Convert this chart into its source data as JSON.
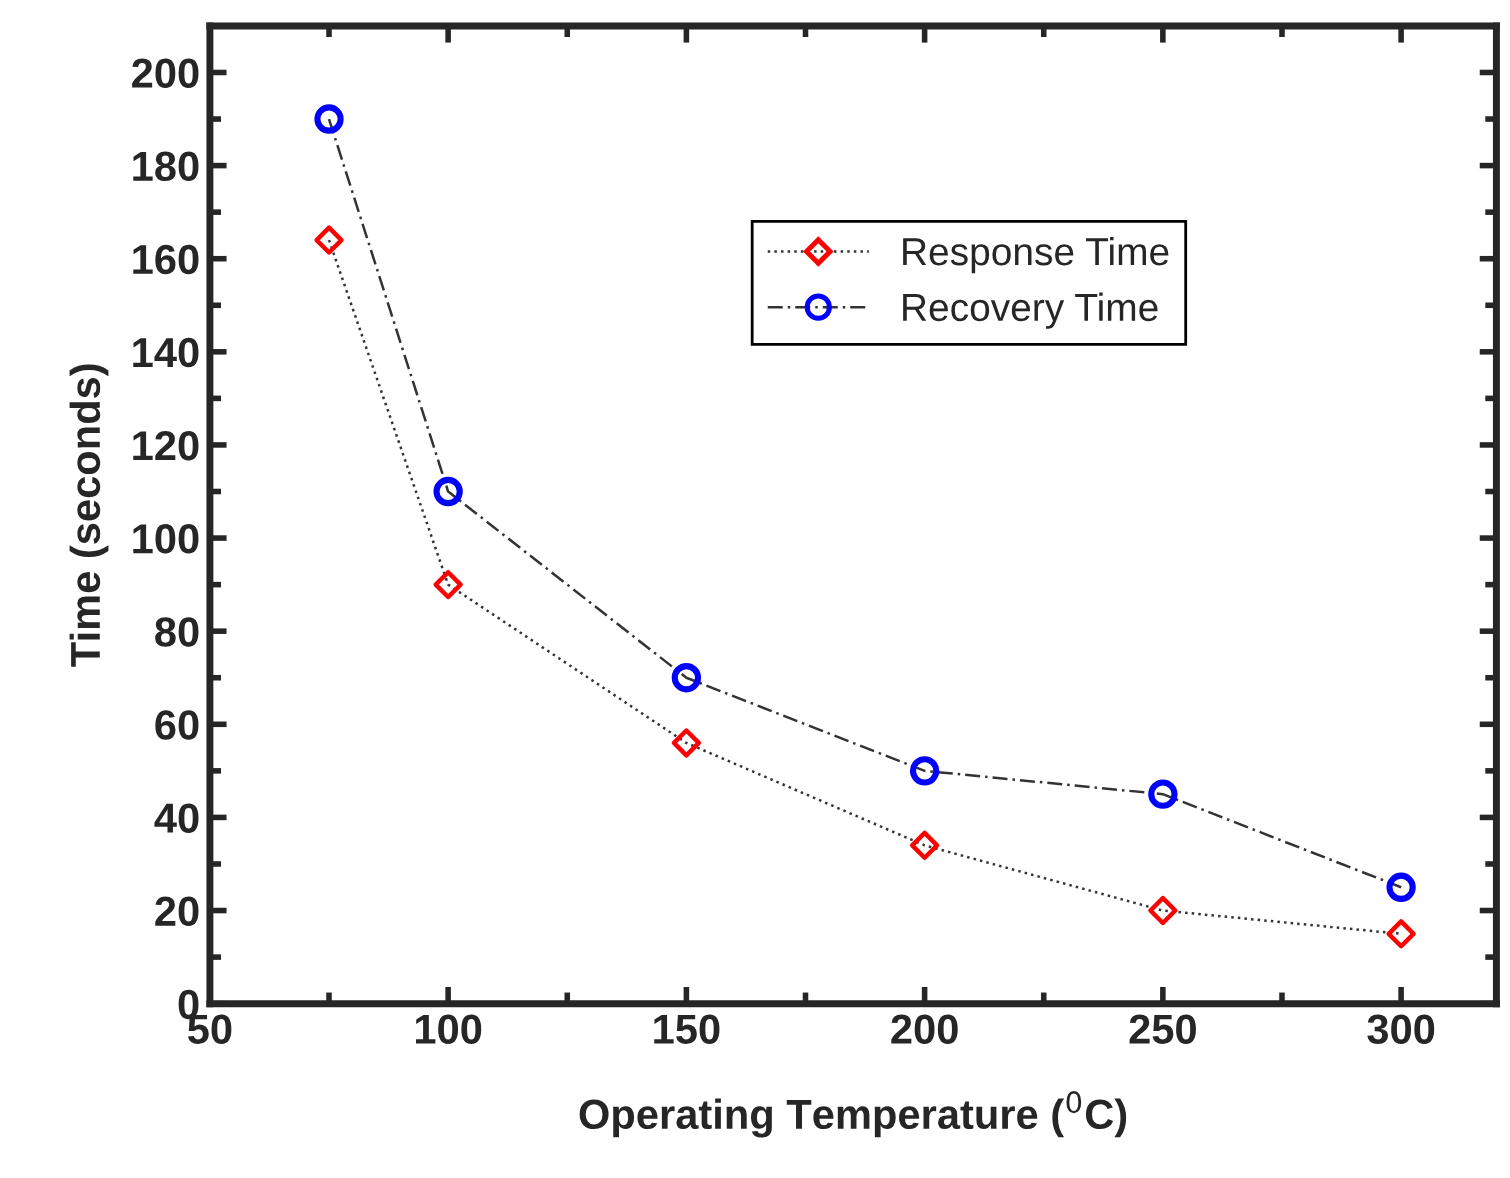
{
  "chart_data": {
    "type": "line",
    "xlabel": "Operating Temperature ($^{0}$C)",
    "ylabel": "Time (seconds)",
    "x": [
      75,
      100,
      150,
      200,
      250,
      300
    ],
    "series": [
      {
        "name": "Response Time",
        "color": "#ff0000",
        "marker": "diamond",
        "line_style": "dotted",
        "values": [
          164,
          90,
          56,
          34,
          20,
          15
        ]
      },
      {
        "name": "Recovery Time",
        "color": "#0000ff",
        "marker": "circle",
        "line_style": "dashed",
        "values": [
          190,
          110,
          70,
          50,
          45,
          25
        ]
      }
    ],
    "xlim": [
      50,
      320
    ],
    "xticks": [
      50,
      100,
      150,
      200,
      250,
      300
    ],
    "ylim": [
      0,
      210
    ],
    "yticks": [
      0,
      20,
      40,
      60,
      80,
      100,
      120,
      140,
      160,
      180,
      200
    ],
    "grid": false,
    "legend": "top"
  }
}
